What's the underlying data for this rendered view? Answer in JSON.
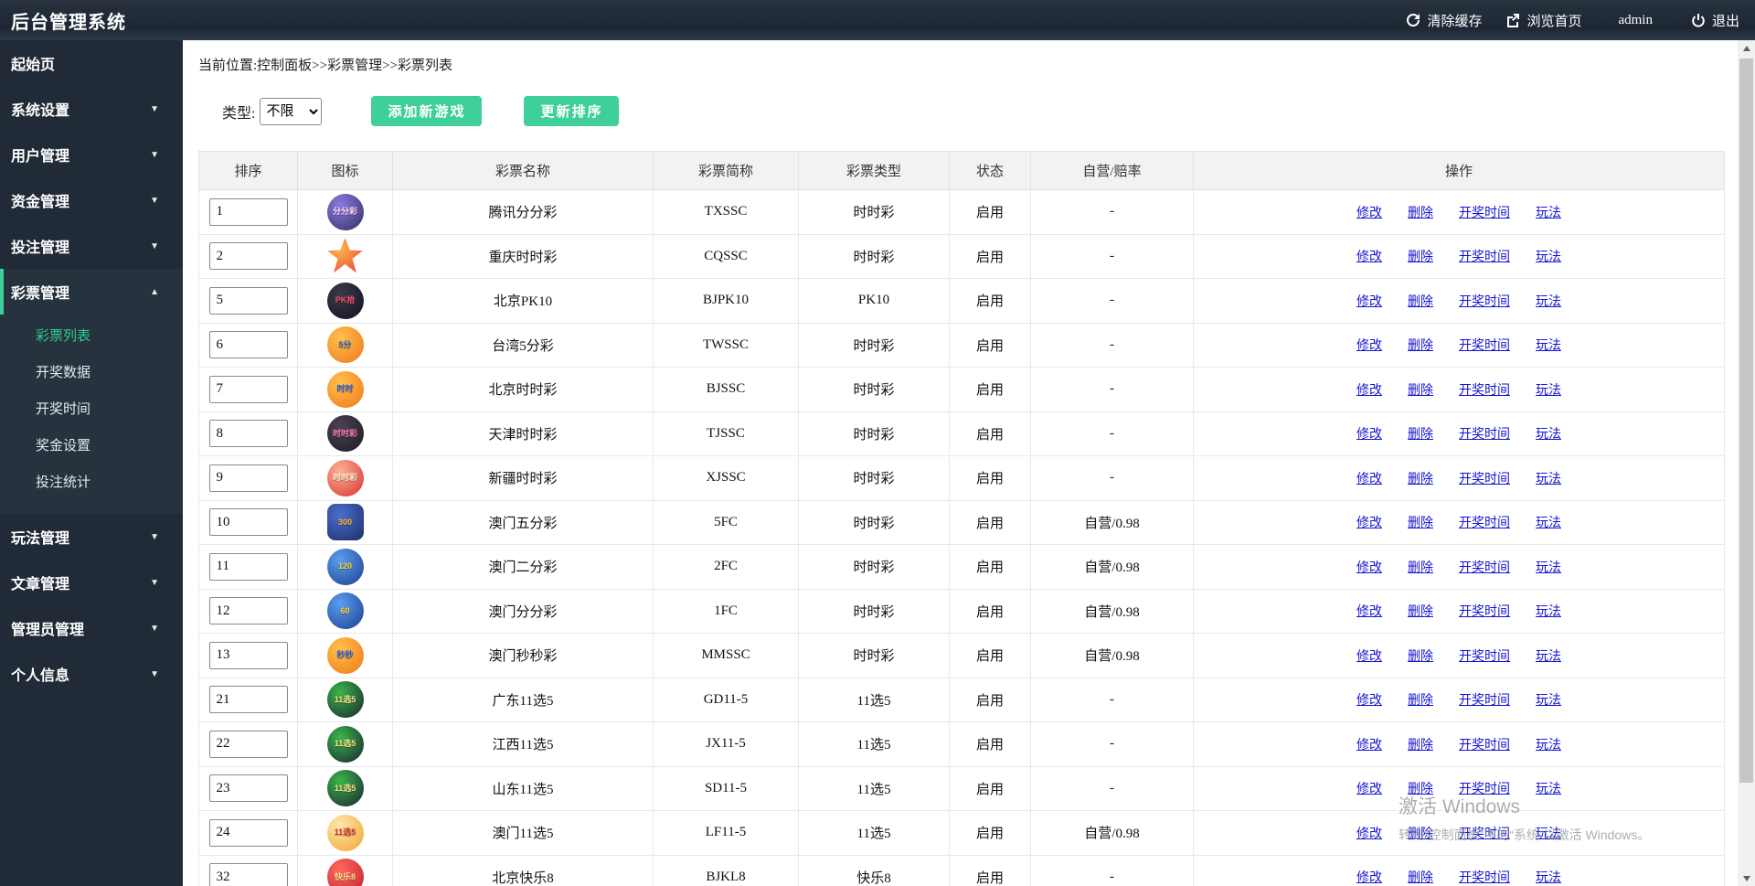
{
  "colors": {
    "accent": "#3ecf9a",
    "link": "#1414d6",
    "sidebar_bg": "#212b37",
    "sidebar_open_bg": "#27323f",
    "header_bg": "#f2f2f2",
    "active_menu_green": "#2ecc8f"
  },
  "topbar": {
    "title": "后台管理系统",
    "clear_cache": "清除缓存",
    "browse_home": "浏览首页",
    "username": "admin",
    "logout": "退出"
  },
  "sidebar": {
    "items": [
      {
        "id": "home",
        "label": "起始页",
        "arrow": ""
      },
      {
        "id": "system",
        "label": "系统设置",
        "arrow": "down"
      },
      {
        "id": "user",
        "label": "用户管理",
        "arrow": "down"
      },
      {
        "id": "funds",
        "label": "资金管理",
        "arrow": "down"
      },
      {
        "id": "betting",
        "label": "投注管理",
        "arrow": "down"
      },
      {
        "id": "lottery",
        "label": "彩票管理",
        "arrow": "up",
        "active": true,
        "children": [
          "彩票列表",
          "开奖数据",
          "开奖时间",
          "奖金设置",
          "投注统计"
        ],
        "active_child": "彩票列表"
      },
      {
        "id": "play",
        "label": "玩法管理",
        "arrow": "down"
      },
      {
        "id": "article",
        "label": "文章管理",
        "arrow": "down"
      },
      {
        "id": "admin",
        "label": "管理员管理",
        "arrow": "down"
      },
      {
        "id": "profile",
        "label": "个人信息",
        "arrow": "down"
      }
    ]
  },
  "breadcrumb": "当前位置:控制面板>>彩票管理>>彩票列表",
  "filter": {
    "label": "类型:",
    "selected": "不限",
    "add_button": "添加新游戏",
    "sort_button": "更新排序"
  },
  "table": {
    "headers": [
      "排序",
      "图标",
      "彩票名称",
      "彩票简称",
      "彩票类型",
      "状态",
      "自营/赔率",
      "操作"
    ],
    "actions": [
      "修改",
      "删除",
      "开奖时间",
      "玩法"
    ],
    "rows": [
      {
        "sort": "1",
        "name": "腾讯分分彩",
        "abbr": "TXSSC",
        "type": "时时彩",
        "status": "启用",
        "odds": "-",
        "icon": {
          "shape": "circle",
          "c1": "#8a7ae0",
          "c2": "#352f63",
          "label": "分分彩",
          "tc": "#ffd9f0"
        }
      },
      {
        "sort": "2",
        "name": "重庆时时彩",
        "abbr": "CQSSC",
        "type": "时时彩",
        "status": "启用",
        "odds": "-",
        "icon": {
          "shape": "star",
          "c1": "#ffb347",
          "c2": "#e23b3b",
          "label": "",
          "tc": "#ffffff"
        }
      },
      {
        "sort": "5",
        "name": "北京PK10",
        "abbr": "BJPK10",
        "type": "PK10",
        "status": "启用",
        "odds": "-",
        "icon": {
          "shape": "circle",
          "c1": "#3a3a4a",
          "c2": "#121220",
          "label": "PK拾",
          "tc": "#ff4d6a"
        }
      },
      {
        "sort": "6",
        "name": "台湾5分彩",
        "abbr": "TWSSC",
        "type": "时时彩",
        "status": "启用",
        "odds": "-",
        "icon": {
          "shape": "circle",
          "c1": "#ffc04d",
          "c2": "#f07818",
          "label": "5分",
          "tc": "#2f5fd1"
        }
      },
      {
        "sort": "7",
        "name": "北京时时彩",
        "abbr": "BJSSC",
        "type": "时时彩",
        "status": "启用",
        "odds": "-",
        "icon": {
          "shape": "circle",
          "c1": "#ffc04d",
          "c2": "#f07818",
          "label": "时时",
          "tc": "#2f5fd1"
        }
      },
      {
        "sort": "8",
        "name": "天津时时彩",
        "abbr": "TJSSC",
        "type": "时时彩",
        "status": "启用",
        "odds": "-",
        "icon": {
          "shape": "circle",
          "c1": "#4a4152",
          "c2": "#1f1b26",
          "label": "时时彩",
          "tc": "#ff7fa8"
        }
      },
      {
        "sort": "9",
        "name": "新疆时时彩",
        "abbr": "XJSSC",
        "type": "时时彩",
        "status": "启用",
        "odds": "-",
        "icon": {
          "shape": "circle",
          "c1": "#ffb199",
          "c2": "#d63227",
          "label": "时时彩",
          "tc": "#fff1d6"
        }
      },
      {
        "sort": "10",
        "name": "澳门五分彩",
        "abbr": "5FC",
        "type": "时时彩",
        "status": "启用",
        "odds": "自营/0.98",
        "icon": {
          "shape": "square",
          "c1": "#4a6fd1",
          "c2": "#1e2f66",
          "label": "300",
          "tc": "#ffb61e"
        }
      },
      {
        "sort": "11",
        "name": "澳门二分彩",
        "abbr": "2FC",
        "type": "时时彩",
        "status": "启用",
        "odds": "自营/0.98",
        "icon": {
          "shape": "circle",
          "c1": "#5a9df0",
          "c2": "#1e3f8f",
          "label": "120",
          "tc": "#ffd21e"
        }
      },
      {
        "sort": "12",
        "name": "澳门分分彩",
        "abbr": "1FC",
        "type": "时时彩",
        "status": "启用",
        "odds": "自营/0.98",
        "icon": {
          "shape": "circle",
          "c1": "#5a9df0",
          "c2": "#1e3f8f",
          "label": "60",
          "tc": "#ffd21e"
        }
      },
      {
        "sort": "13",
        "name": "澳门秒秒彩",
        "abbr": "MMSSC",
        "type": "时时彩",
        "status": "启用",
        "odds": "自营/0.98",
        "icon": {
          "shape": "circle",
          "c1": "#ffc04d",
          "c2": "#f07818",
          "label": "秒秒",
          "tc": "#2f5fd1"
        }
      },
      {
        "sort": "21",
        "name": "广东11选5",
        "abbr": "GD11-5",
        "type": "11选5",
        "status": "启用",
        "odds": "-",
        "icon": {
          "shape": "circle",
          "c1": "#39b54a",
          "c2": "#1c2430",
          "label": "11选5",
          "tc": "#ffe08a"
        }
      },
      {
        "sort": "22",
        "name": "江西11选5",
        "abbr": "JX11-5",
        "type": "11选5",
        "status": "启用",
        "odds": "-",
        "icon": {
          "shape": "circle",
          "c1": "#39b54a",
          "c2": "#1c2430",
          "label": "11选5",
          "tc": "#ffe08a"
        }
      },
      {
        "sort": "23",
        "name": "山东11选5",
        "abbr": "SD11-5",
        "type": "11选5",
        "status": "启用",
        "odds": "-",
        "icon": {
          "shape": "circle",
          "c1": "#39b54a",
          "c2": "#1c2430",
          "label": "11选5",
          "tc": "#ffe08a"
        }
      },
      {
        "sort": "24",
        "name": "澳门11选5",
        "abbr": "LF11-5",
        "type": "11选5",
        "status": "启用",
        "odds": "自营/0.98",
        "icon": {
          "shape": "circle",
          "c1": "#ffe9b0",
          "c2": "#f0a32f",
          "label": "11选5",
          "tc": "#d62e2e"
        }
      },
      {
        "sort": "32",
        "name": "北京快乐8",
        "abbr": "BJKL8",
        "type": "快乐8",
        "status": "启用",
        "odds": "-",
        "icon": {
          "shape": "circle",
          "c1": "#ff6b5e",
          "c2": "#c01f2e",
          "label": "快乐8",
          "tc": "#ffe08a"
        }
      }
    ]
  },
  "watermark": {
    "line1": "激活 Windows",
    "line2": "转到“控制面板”中的“系统”以激活 Windows。"
  }
}
